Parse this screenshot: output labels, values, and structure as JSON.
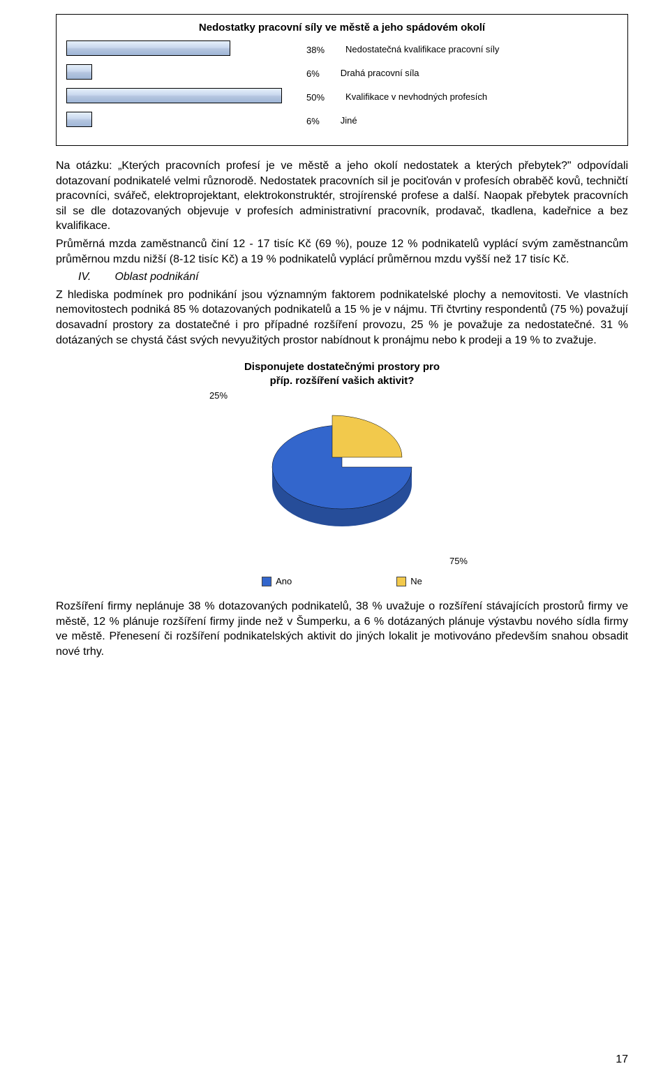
{
  "bar_chart": {
    "type": "bar-horizontal",
    "title": "Nedostatky pracovní síly ve městě a jeho spádovém okolí",
    "bar_fill_gradient": [
      "#e6f0fb",
      "#c9d8ee",
      "#b5c6e0",
      "#9fb6d7"
    ],
    "bar_border": "#000000",
    "max_pct": 55,
    "rows": [
      {
        "pct": 38,
        "pct_label": "38%",
        "legend": "Nedostatečná kvalifikace pracovní síly"
      },
      {
        "pct": 6,
        "pct_label": "6%",
        "legend": "Drahá pracovní síla"
      },
      {
        "pct": 50,
        "pct_label": "50%",
        "legend": "Kvalifikace v nevhodných profesích"
      },
      {
        "pct": 6,
        "pct_label": "6%",
        "legend": "Jiné"
      }
    ]
  },
  "paragraphs": {
    "p1": "Na otázku: „Kterých pracovních profesí je ve městě a jeho okolí nedostatek a kterých přebytek?\" odpovídali dotazovaní podnikatelé velmi různorodě. Nedostatek pracovních sil je pociťován v profesích obraběč kovů, techničtí pracovníci, svářeč, elektroprojektant, elektrokonstruktér, strojírenské profese a další. Naopak přebytek pracovních sil se dle dotazovaných objevuje v profesích administrativní pracovník, prodavač, tkadlena, kadeřnice a bez kvalifikace.",
    "p2": "Průměrná mzda zaměstnanců činí 12 - 17 tisíc Kč (69 %), pouze 12 % podnikatelů vyplácí svým zaměstnancům průměrnou mzdu nižší  (8-12 tisíc Kč) a 19 % podnikatelů vyplácí průměrnou mzdu vyšší než 17 tisíc Kč.",
    "section_roman": "IV.",
    "section_title": "Oblast podnikání",
    "p3": "Z hlediska podmínek pro podnikání jsou významným faktorem podnikatelské plochy a nemovitosti. Ve vlastních nemovitostech podniká 85 % dotazovaných podnikatelů a 15 % je v nájmu. Tři čtvrtiny respondentů (75 %) považují dosavadní prostory za dostatečné i pro případné rozšíření provozu, 25 % je považuje za nedostatečné. 31 % dotázaných se chystá část svých nevyužitých prostor nabídnout k pronájmu nebo k prodeji a 19 % to zvažuje."
  },
  "pie_chart": {
    "type": "pie-3d",
    "title_line1": "Disponujete dostatečnými prostory pro",
    "title_line2": "příp. rozšíření vašich aktivit?",
    "slices": [
      {
        "label": "Ano",
        "value": 75,
        "pct_label": "75%",
        "color_top": "#3366cc",
        "color_side": "#264d99"
      },
      {
        "label": "Ne",
        "value": 25,
        "pct_label": "25%",
        "color_top": "#f2c94c",
        "color_side": "#b38f28"
      }
    ],
    "background": "#ffffff",
    "label_fontsize": 13,
    "title_fontsize": 15
  },
  "paragraphs2": {
    "p4": "Rozšíření firmy neplánuje 38 % dotazovaných podnikatelů, 38 % uvažuje o rozšíření stávajících prostorů firmy ve městě, 12 % plánuje rozšíření firmy jinde než v Šumperku, a 6 % dotázaných plánuje výstavbu nového sídla firmy ve městě. Přenesení či rozšíření podnikatelských aktivit do jiných lokalit je motivováno především snahou obsadit nové trhy."
  },
  "page_number": "17"
}
